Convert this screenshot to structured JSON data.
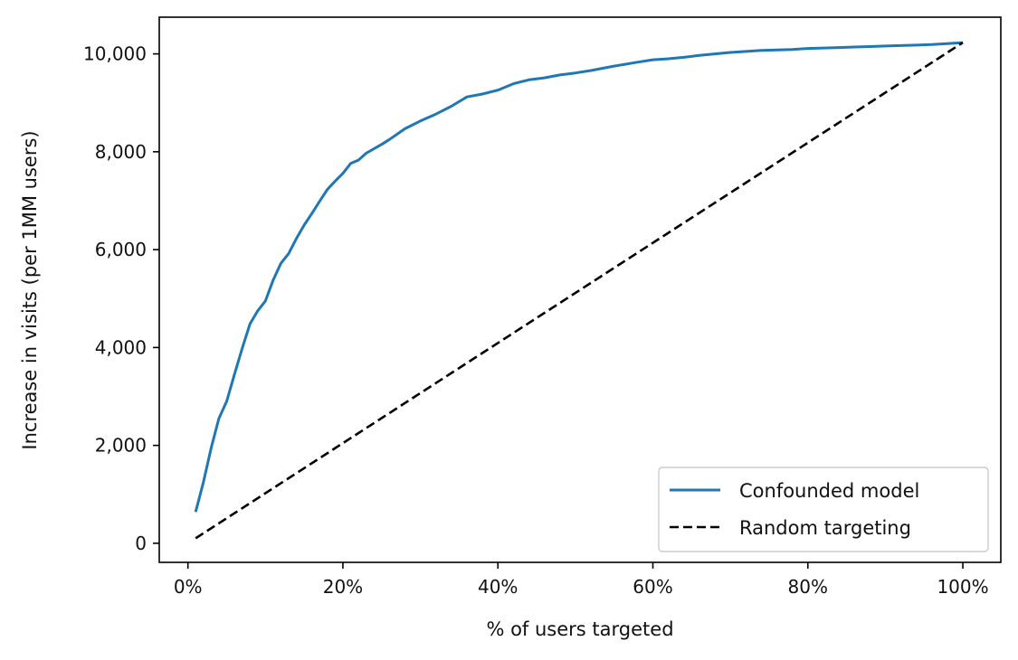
{
  "chart_data": {
    "type": "line",
    "title": "",
    "xlabel": "% of users targeted",
    "ylabel": "Increase in visits (per 1MM users)",
    "xlim": [
      -0.037,
      1.049
    ],
    "ylim": [
      -390,
      10750
    ],
    "x_ticks": [
      0,
      0.2,
      0.4,
      0.6,
      0.8,
      1.0
    ],
    "x_tick_labels": [
      "0%",
      "20%",
      "40%",
      "60%",
      "80%",
      "100%"
    ],
    "y_ticks": [
      0,
      2000,
      4000,
      6000,
      8000,
      10000
    ],
    "y_tick_labels": [
      "0",
      "2,000",
      "4,000",
      "6,000",
      "8,000",
      "10,000"
    ],
    "grid": false,
    "legend_position": "lower-right",
    "series": [
      {
        "name": "Confounded model",
        "color": "#1f77b4",
        "style": "solid",
        "x": [
          0.01,
          0.02,
          0.03,
          0.04,
          0.05,
          0.06,
          0.07,
          0.08,
          0.09,
          0.1,
          0.11,
          0.12,
          0.13,
          0.14,
          0.15,
          0.16,
          0.17,
          0.18,
          0.19,
          0.2,
          0.21,
          0.22,
          0.23,
          0.24,
          0.25,
          0.26,
          0.27,
          0.28,
          0.29,
          0.3,
          0.32,
          0.34,
          0.36,
          0.38,
          0.4,
          0.42,
          0.44,
          0.46,
          0.48,
          0.5,
          0.52,
          0.55,
          0.58,
          0.6,
          0.62,
          0.64,
          0.66,
          0.68,
          0.7,
          0.72,
          0.74,
          0.76,
          0.78,
          0.8,
          0.82,
          0.84,
          0.86,
          0.88,
          0.9,
          0.92,
          0.94,
          0.96,
          0.98,
          1.0
        ],
        "y": [
          640,
          1250,
          1950,
          2550,
          2900,
          3450,
          3980,
          4480,
          4750,
          4950,
          5380,
          5720,
          5920,
          6230,
          6500,
          6740,
          6990,
          7230,
          7400,
          7560,
          7760,
          7830,
          7970,
          8060,
          8150,
          8250,
          8360,
          8470,
          8550,
          8630,
          8770,
          8930,
          9120,
          9180,
          9260,
          9390,
          9470,
          9510,
          9570,
          9610,
          9660,
          9750,
          9830,
          9880,
          9900,
          9930,
          9970,
          10000,
          10030,
          10050,
          10070,
          10080,
          10090,
          10110,
          10120,
          10130,
          10140,
          10150,
          10160,
          10170,
          10180,
          10190,
          10210,
          10230
        ]
      },
      {
        "name": "Random targeting",
        "color": "#000000",
        "style": "dashed",
        "x": [
          0.01,
          1.0
        ],
        "y": [
          102,
          10230
        ]
      }
    ]
  }
}
